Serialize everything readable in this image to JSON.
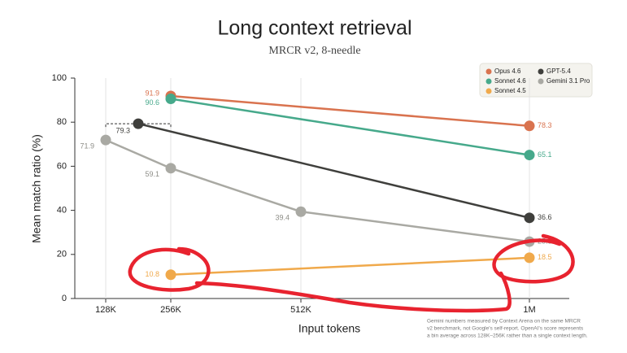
{
  "chart_data": {
    "type": "line",
    "title": "Long context retrieval",
    "subtitle": "MRCR v2, 8-needle",
    "x_label": "Input tokens",
    "y_label": "Mean match ratio (%)",
    "xlim": [
      67,
      1085
    ],
    "xticks": [
      {
        "value": 128,
        "label": "128K"
      },
      {
        "value": 256,
        "label": "256K"
      },
      {
        "value": 512,
        "label": "512K"
      },
      {
        "value": 1000,
        "label": "1M"
      }
    ],
    "ylim": [
      0,
      100
    ],
    "yticks": [
      0,
      20,
      40,
      60,
      80,
      100
    ],
    "grid": true,
    "legend": "top-right",
    "series": [
      {
        "name": "Opus 4.6",
        "color": "#d9734f",
        "x": [
          256,
          1000
        ],
        "values": [
          91.9,
          78.3
        ]
      },
      {
        "name": "GPT-5.4",
        "color": "#3f3f3c",
        "x": [
          192,
          1000
        ],
        "values": [
          79.3,
          36.6
        ]
      },
      {
        "name": "Sonnet 4.6",
        "color": "#46a98b",
        "x": [
          256,
          1000
        ],
        "values": [
          90.6,
          65.1
        ]
      },
      {
        "name": "Gemini 3.1 Pro",
        "color": "#a9a9a3",
        "x": [
          128,
          256,
          512,
          1000
        ],
        "values": [
          71.9,
          59.1,
          39.4,
          25.8
        ]
      },
      {
        "name": "Sonnet 4.5",
        "color": "#f0a94b",
        "x": [
          256,
          1000
        ],
        "values": [
          10.8,
          18.5
        ]
      }
    ],
    "footnote": [
      "Gemini numbers measured by Context Arena on the same MRCR",
      "v2 benchmark, not Google's self-report. OpenAI's score represents",
      "a bin average across 128K–256K rather than a single context length."
    ]
  }
}
